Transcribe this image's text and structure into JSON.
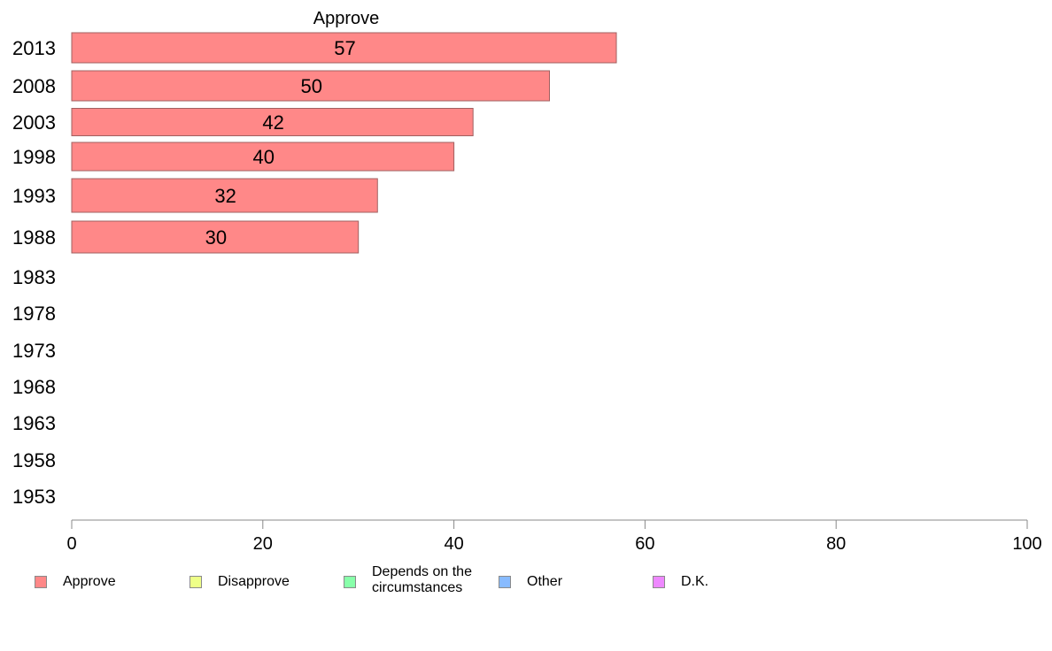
{
  "chart_data": {
    "type": "bar",
    "orientation": "horizontal",
    "title": "Approve",
    "categories": [
      "2013",
      "2008",
      "2003",
      "1998",
      "1993",
      "1988",
      "1983",
      "1978",
      "1973",
      "1968",
      "1963",
      "1958",
      "1953"
    ],
    "series": [
      {
        "name": "Approve",
        "values": [
          57,
          50,
          42,
          40,
          32,
          30,
          null,
          null,
          null,
          null,
          null,
          null,
          null
        ],
        "color": "#ff8888"
      }
    ],
    "data_labels": [
      "57",
      "50",
      "42",
      "40",
      "32",
      "30"
    ],
    "xlim": [
      0,
      100
    ],
    "xticks": [
      0,
      20,
      40,
      60,
      80,
      100
    ],
    "grid": false,
    "legend_position": "bottom"
  },
  "legend": [
    {
      "label": "Approve",
      "color": "#ff8888"
    },
    {
      "label": "Disapprove",
      "color": "#eeff88"
    },
    {
      "label": "Depends on the circumstances",
      "line1": "Depends on the",
      "line2": "circumstances",
      "color": "#88ffaa"
    },
    {
      "label": "Other",
      "color": "#88bbff"
    },
    {
      "label": "D.K.",
      "color": "#ee88ff"
    }
  ]
}
